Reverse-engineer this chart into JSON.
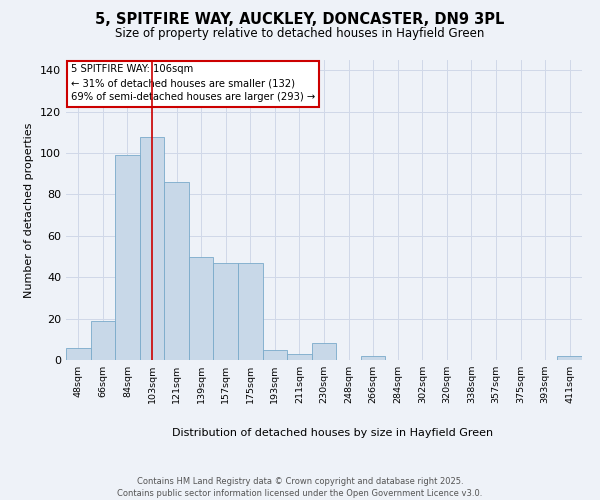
{
  "title_line1": "5, SPITFIRE WAY, AUCKLEY, DONCASTER, DN9 3PL",
  "title_line2": "Size of property relative to detached houses in Hayfield Green",
  "xlabel": "Distribution of detached houses by size in Hayfield Green",
  "ylabel": "Number of detached properties",
  "footer_line1": "Contains HM Land Registry data © Crown copyright and database right 2025.",
  "footer_line2": "Contains public sector information licensed under the Open Government Licence v3.0.",
  "categories": [
    "48sqm",
    "66sqm",
    "84sqm",
    "103sqm",
    "121sqm",
    "139sqm",
    "157sqm",
    "175sqm",
    "193sqm",
    "211sqm",
    "230sqm",
    "248sqm",
    "266sqm",
    "284sqm",
    "302sqm",
    "320sqm",
    "338sqm",
    "357sqm",
    "375sqm",
    "393sqm",
    "411sqm"
  ],
  "values": [
    6,
    19,
    99,
    108,
    86,
    50,
    47,
    47,
    5,
    3,
    8,
    0,
    2,
    0,
    0,
    0,
    0,
    0,
    0,
    0,
    2
  ],
  "bar_color": "#c8d8e8",
  "bar_edge_color": "#7aaaca",
  "grid_color": "#d0d8e8",
  "background_color": "#eef2f8",
  "plot_bg_color": "#eef2f8",
  "annotation_text": "5 SPITFIRE WAY: 106sqm\n← 31% of detached houses are smaller (132)\n69% of semi-detached houses are larger (293) →",
  "vline_x_index": 3,
  "vline_color": "#cc0000",
  "annotation_box_edge_color": "#cc0000",
  "annotation_box_face_color": "#ffffff",
  "ylim": [
    0,
    145
  ],
  "yticks": [
    0,
    20,
    40,
    60,
    80,
    100,
    120,
    140
  ]
}
